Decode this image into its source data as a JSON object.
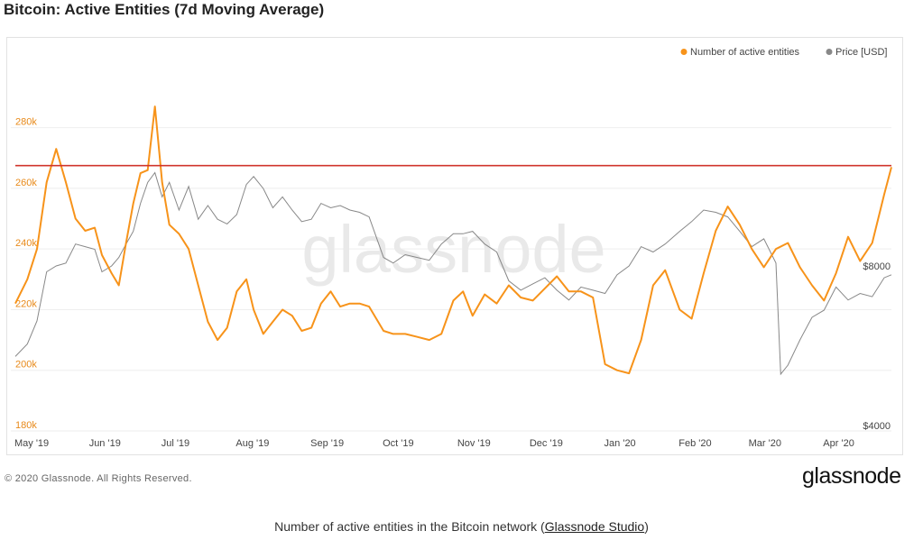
{
  "title": "Bitcoin: Active Entities (7d Moving Average)",
  "footer": {
    "copyright": "© 2020 Glassnode. All Rights Reserved.",
    "logo": "glassnode"
  },
  "caption": {
    "prefix": "Number of active entities in the Bitcoin network (",
    "link": "Glassnode Studio",
    "suffix": ")"
  },
  "watermark": "glassnode",
  "colors": {
    "entities": "#f7931a",
    "price": "#888888",
    "threshold": "#d0342c",
    "left_axis_text": "#e88a1a"
  },
  "chart_data": {
    "type": "line",
    "legend": [
      {
        "name": "Number of active entities",
        "color": "#f7931a"
      },
      {
        "name": "Price [USD]",
        "color": "#888888"
      }
    ],
    "legend_position": "top-right",
    "x_tick_labels": [
      "May '19",
      "Jun '19",
      "Jul '19",
      "Aug '19",
      "Sep '19",
      "Oct '19",
      "Nov '19",
      "Dec '19",
      "Jan '20",
      "Feb '20",
      "Mar '20",
      "Apr '20"
    ],
    "x_range": [
      "2019-05-01",
      "2020-04-29"
    ],
    "y_left": {
      "ticks": [
        "180k",
        "200k",
        "220k",
        "240k",
        "260k",
        "280k"
      ],
      "range": [
        180000,
        290000
      ]
    },
    "y_right": {
      "ticks": [
        "$4000",
        "$8000"
      ],
      "scale": "log",
      "range": [
        4000,
        16000
      ]
    },
    "threshold_line": 267500,
    "grid": true,
    "series": [
      {
        "name": "Number of active entities",
        "axis": "left",
        "x": [
          "2019-05-01",
          "2019-05-06",
          "2019-05-10",
          "2019-05-14",
          "2019-05-18",
          "2019-05-22",
          "2019-05-26",
          "2019-05-30",
          "2019-06-03",
          "2019-06-06",
          "2019-06-10",
          "2019-06-13",
          "2019-06-16",
          "2019-06-19",
          "2019-06-22",
          "2019-06-25",
          "2019-06-28",
          "2019-07-01",
          "2019-07-04",
          "2019-07-08",
          "2019-07-12",
          "2019-07-16",
          "2019-07-20",
          "2019-07-24",
          "2019-07-28",
          "2019-08-01",
          "2019-08-05",
          "2019-08-08",
          "2019-08-12",
          "2019-08-16",
          "2019-08-20",
          "2019-08-24",
          "2019-08-28",
          "2019-09-01",
          "2019-09-05",
          "2019-09-09",
          "2019-09-13",
          "2019-09-17",
          "2019-09-21",
          "2019-09-25",
          "2019-10-01",
          "2019-10-05",
          "2019-10-10",
          "2019-10-15",
          "2019-10-20",
          "2019-10-25",
          "2019-10-30",
          "2019-11-03",
          "2019-11-07",
          "2019-11-12",
          "2019-11-17",
          "2019-11-22",
          "2019-11-27",
          "2019-12-02",
          "2019-12-07",
          "2019-12-12",
          "2019-12-17",
          "2019-12-22",
          "2019-12-27",
          "2020-01-01",
          "2020-01-06",
          "2020-01-11",
          "2020-01-16",
          "2020-01-21",
          "2020-01-26",
          "2020-02-01",
          "2020-02-06",
          "2020-02-11",
          "2020-02-16",
          "2020-02-21",
          "2020-02-26",
          "2020-03-02",
          "2020-03-07",
          "2020-03-12",
          "2020-03-17",
          "2020-03-22",
          "2020-03-27",
          "2020-04-01",
          "2020-04-06",
          "2020-04-11",
          "2020-04-16",
          "2020-04-21",
          "2020-04-26",
          "2020-04-29"
        ],
        "values": [
          222000,
          230000,
          240000,
          262000,
          273000,
          262000,
          250000,
          246000,
          247000,
          238000,
          232000,
          228000,
          242000,
          255000,
          265000,
          266000,
          287000,
          262000,
          248000,
          245000,
          240000,
          228000,
          216000,
          210000,
          214000,
          226000,
          230000,
          220000,
          212000,
          216000,
          220000,
          218000,
          213000,
          214000,
          222000,
          226000,
          221000,
          222000,
          222000,
          221000,
          213000,
          212000,
          212000,
          211000,
          210000,
          212000,
          223000,
          226000,
          218000,
          225000,
          222000,
          228000,
          224000,
          223000,
          227000,
          231000,
          226000,
          226000,
          224000,
          202000,
          200000,
          199000,
          210000,
          228000,
          233000,
          220000,
          217000,
          232000,
          246000,
          254000,
          248000,
          240000,
          234000,
          240000,
          242000,
          234000,
          228000,
          223000,
          232000,
          244000,
          236000,
          242000,
          258000,
          267000
        ]
      },
      {
        "name": "Price [USD]",
        "axis": "right",
        "x": [
          "2019-05-01",
          "2019-05-06",
          "2019-05-10",
          "2019-05-14",
          "2019-05-18",
          "2019-05-22",
          "2019-05-26",
          "2019-05-30",
          "2019-06-03",
          "2019-06-06",
          "2019-06-10",
          "2019-06-13",
          "2019-06-16",
          "2019-06-19",
          "2019-06-22",
          "2019-06-25",
          "2019-06-28",
          "2019-07-01",
          "2019-07-04",
          "2019-07-08",
          "2019-07-12",
          "2019-07-16",
          "2019-07-20",
          "2019-07-24",
          "2019-07-28",
          "2019-08-01",
          "2019-08-05",
          "2019-08-08",
          "2019-08-12",
          "2019-08-16",
          "2019-08-20",
          "2019-08-24",
          "2019-08-28",
          "2019-09-01",
          "2019-09-05",
          "2019-09-09",
          "2019-09-13",
          "2019-09-17",
          "2019-09-21",
          "2019-09-25",
          "2019-10-01",
          "2019-10-05",
          "2019-10-10",
          "2019-10-15",
          "2019-10-20",
          "2019-10-25",
          "2019-10-30",
          "2019-11-03",
          "2019-11-07",
          "2019-11-12",
          "2019-11-17",
          "2019-11-22",
          "2019-11-27",
          "2019-12-02",
          "2019-12-07",
          "2019-12-12",
          "2019-12-17",
          "2019-12-22",
          "2019-12-27",
          "2020-01-01",
          "2020-01-06",
          "2020-01-11",
          "2020-01-16",
          "2020-01-21",
          "2020-01-26",
          "2020-02-01",
          "2020-02-06",
          "2020-02-11",
          "2020-02-16",
          "2020-02-21",
          "2020-02-26",
          "2020-03-02",
          "2020-03-07",
          "2020-03-12",
          "2020-03-14",
          "2020-03-17",
          "2020-03-22",
          "2020-03-27",
          "2020-04-01",
          "2020-04-06",
          "2020-04-11",
          "2020-04-16",
          "2020-04-21",
          "2020-04-26",
          "2020-04-29"
        ],
        "values": [
          5400,
          5700,
          6300,
          7800,
          8000,
          8100,
          8800,
          8700,
          8600,
          7800,
          8000,
          8300,
          8800,
          9300,
          10500,
          11500,
          12000,
          10800,
          11500,
          10200,
          11300,
          9800,
          10400,
          9800,
          9600,
          10000,
          11400,
          11800,
          11200,
          10300,
          10800,
          10200,
          9700,
          9800,
          10500,
          10300,
          10400,
          10200,
          10100,
          9900,
          8300,
          8100,
          8400,
          8300,
          8200,
          8800,
          9200,
          9200,
          9300,
          8800,
          8500,
          7500,
          7200,
          7400,
          7600,
          7200,
          6900,
          7300,
          7200,
          7100,
          7700,
          8000,
          8700,
          8500,
          8800,
          9300,
          9700,
          10200,
          10100,
          9900,
          9300,
          8700,
          9000,
          8100,
          5000,
          5200,
          5800,
          6400,
          6600,
          7300,
          6900,
          7100,
          7000,
          7600,
          7700
        ]
      }
    ]
  }
}
